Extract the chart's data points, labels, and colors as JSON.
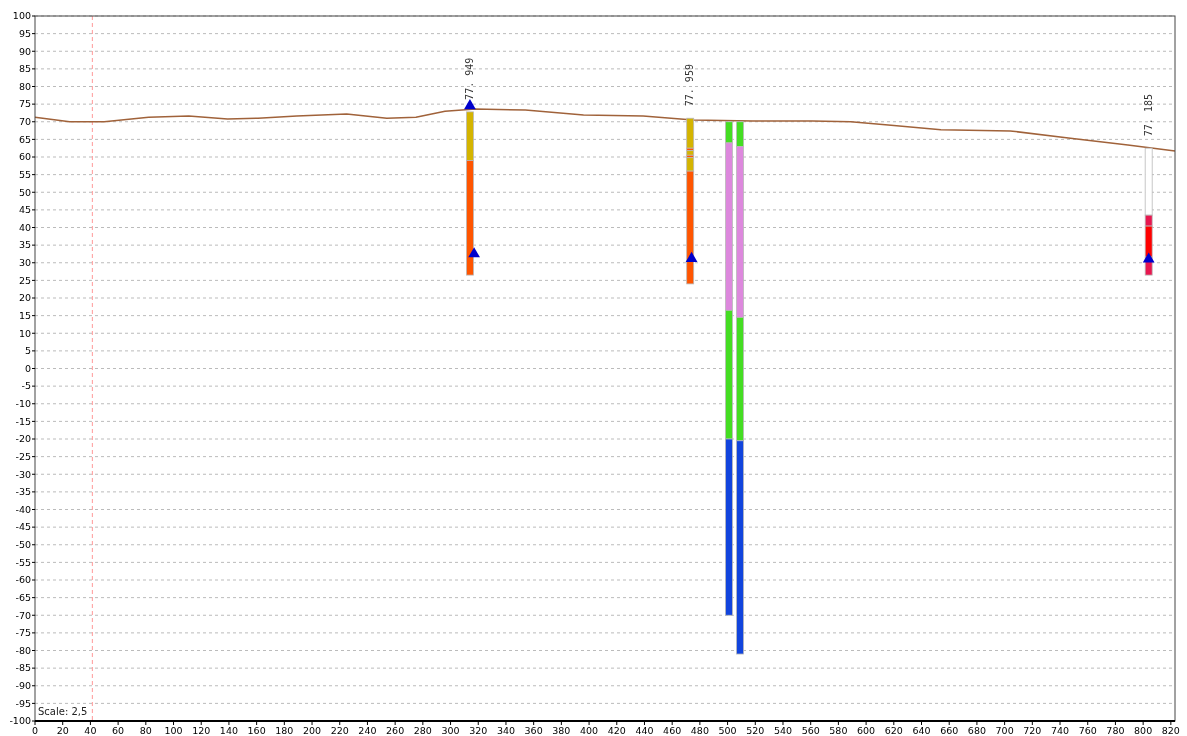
{
  "chart_data": {
    "type": "line",
    "xlim": [
      0,
      823
    ],
    "ylim": [
      -100,
      100
    ],
    "xticks": [
      0,
      20,
      40,
      60,
      80,
      100,
      120,
      140,
      160,
      180,
      200,
      220,
      240,
      260,
      280,
      300,
      320,
      340,
      360,
      380,
      400,
      420,
      440,
      460,
      480,
      500,
      520,
      540,
      560,
      580,
      600,
      620,
      640,
      660,
      680,
      700,
      720,
      740,
      760,
      780,
      800,
      820
    ],
    "yticks": [
      -100,
      -95,
      -90,
      -85,
      -80,
      -75,
      -70,
      -65,
      -60,
      -55,
      -50,
      -45,
      -40,
      -35,
      -30,
      -25,
      -20,
      -15,
      -10,
      -5,
      0,
      5,
      10,
      15,
      20,
      25,
      30,
      35,
      40,
      45,
      50,
      55,
      60,
      65,
      70,
      75,
      80,
      85,
      90,
      95,
      100
    ],
    "grid": "y",
    "series": [
      {
        "color": "#a0623a",
        "x": [
          0,
          25,
          50,
          82,
          111,
          139,
          161,
          189,
          225,
          254,
          275,
          296,
          318,
          354,
          396,
          439,
          475,
          518,
          561,
          589,
          618,
          654,
          704,
          746,
          789,
          823
        ],
        "values": [
          71.3,
          70,
          70,
          71.3,
          71.6,
          70.8,
          71,
          71.6,
          72.2,
          71,
          71.3,
          73,
          73.6,
          73.3,
          71.9,
          71.6,
          70.5,
          70.2,
          70.2,
          70,
          69,
          67.7,
          67.4,
          65.4,
          63.4,
          61.7
        ]
      },
      {
        "type": "bar",
        "color": "#d4b400",
        "x": [
          314
        ],
        "base": [
          59
        ],
        "values": [
          13.8
        ]
      },
      {
        "type": "bar",
        "color": "#ff5500",
        "x": [
          314
        ],
        "base": [
          26.5
        ],
        "values": [
          32.5
        ]
      },
      {
        "type": "bar",
        "color": "#d4b400",
        "x": [
          473
        ],
        "base": [
          62.5
        ],
        "values": [
          8.5
        ]
      },
      {
        "type": "bar",
        "color": "#ff5500",
        "x": [
          473
        ],
        "base": [
          61.8
        ],
        "values": [
          0.7
        ]
      },
      {
        "type": "bar",
        "color": "#d4b400",
        "x": [
          473
        ],
        "base": [
          60.5
        ],
        "values": [
          1.3
        ]
      },
      {
        "type": "bar",
        "color": "#ff5500",
        "x": [
          473
        ],
        "base": [
          59.8
        ],
        "values": [
          0.7
        ]
      },
      {
        "type": "bar",
        "color": "#d4b400",
        "x": [
          473
        ],
        "base": [
          56
        ],
        "values": [
          3.8
        ]
      },
      {
        "type": "bar",
        "color": "#ff5500",
        "x": [
          473
        ],
        "base": [
          24
        ],
        "values": [
          32
        ]
      },
      {
        "type": "bar",
        "color": "#44dd22",
        "x": [
          501,
          509
        ],
        "base": [
          64,
          63
        ],
        "values": [
          6,
          7
        ]
      },
      {
        "type": "bar",
        "color": "#dd88dd",
        "x": [
          501,
          509
        ],
        "base": [
          16.5,
          14.5
        ],
        "values": [
          47.5,
          48.5
        ]
      },
      {
        "type": "bar",
        "color": "#44dd22",
        "x": [
          501,
          509
        ],
        "base": [
          -20,
          -20.5
        ],
        "values": [
          36.5,
          35
        ]
      },
      {
        "type": "bar",
        "color": "#1144dd",
        "x": [
          501,
          509
        ],
        "base": [
          -70,
          -81
        ],
        "values": [
          50,
          60.5
        ]
      },
      {
        "type": "bar",
        "color": "#ffffff",
        "x": [
          804
        ],
        "base": [
          43.5
        ],
        "values": [
          19
        ]
      },
      {
        "type": "bar",
        "color": "#e8174f",
        "x": [
          804
        ],
        "base": [
          40.4
        ],
        "values": [
          3.1
        ]
      },
      {
        "type": "bar",
        "color": "#ff0000",
        "x": [
          804
        ],
        "base": [
          31.6
        ],
        "values": [
          8.8
        ]
      },
      {
        "type": "bar",
        "color": "#e8174f",
        "x": [
          804
        ],
        "base": [
          26.5
        ],
        "values": [
          5.1
        ]
      },
      {
        "type": "scatter",
        "color": "#0000cc",
        "marker": "triangle",
        "x": [
          314,
          317,
          474,
          804
        ],
        "values": [
          74.5,
          32.5,
          31.2,
          31
        ]
      }
    ],
    "ref_lines": [
      {
        "axis": "x",
        "value": 41.4,
        "color": "#ff9999",
        "line_style": "dashed"
      }
    ],
    "annotations": [
      {
        "text": "77. 949",
        "x": 314,
        "y": 72.8
      },
      {
        "text": "77. 959",
        "x": 473,
        "y": 71
      },
      {
        "text": "77. 185",
        "x": 804,
        "y": 62.5
      },
      "Scale: 2,5"
    ]
  }
}
